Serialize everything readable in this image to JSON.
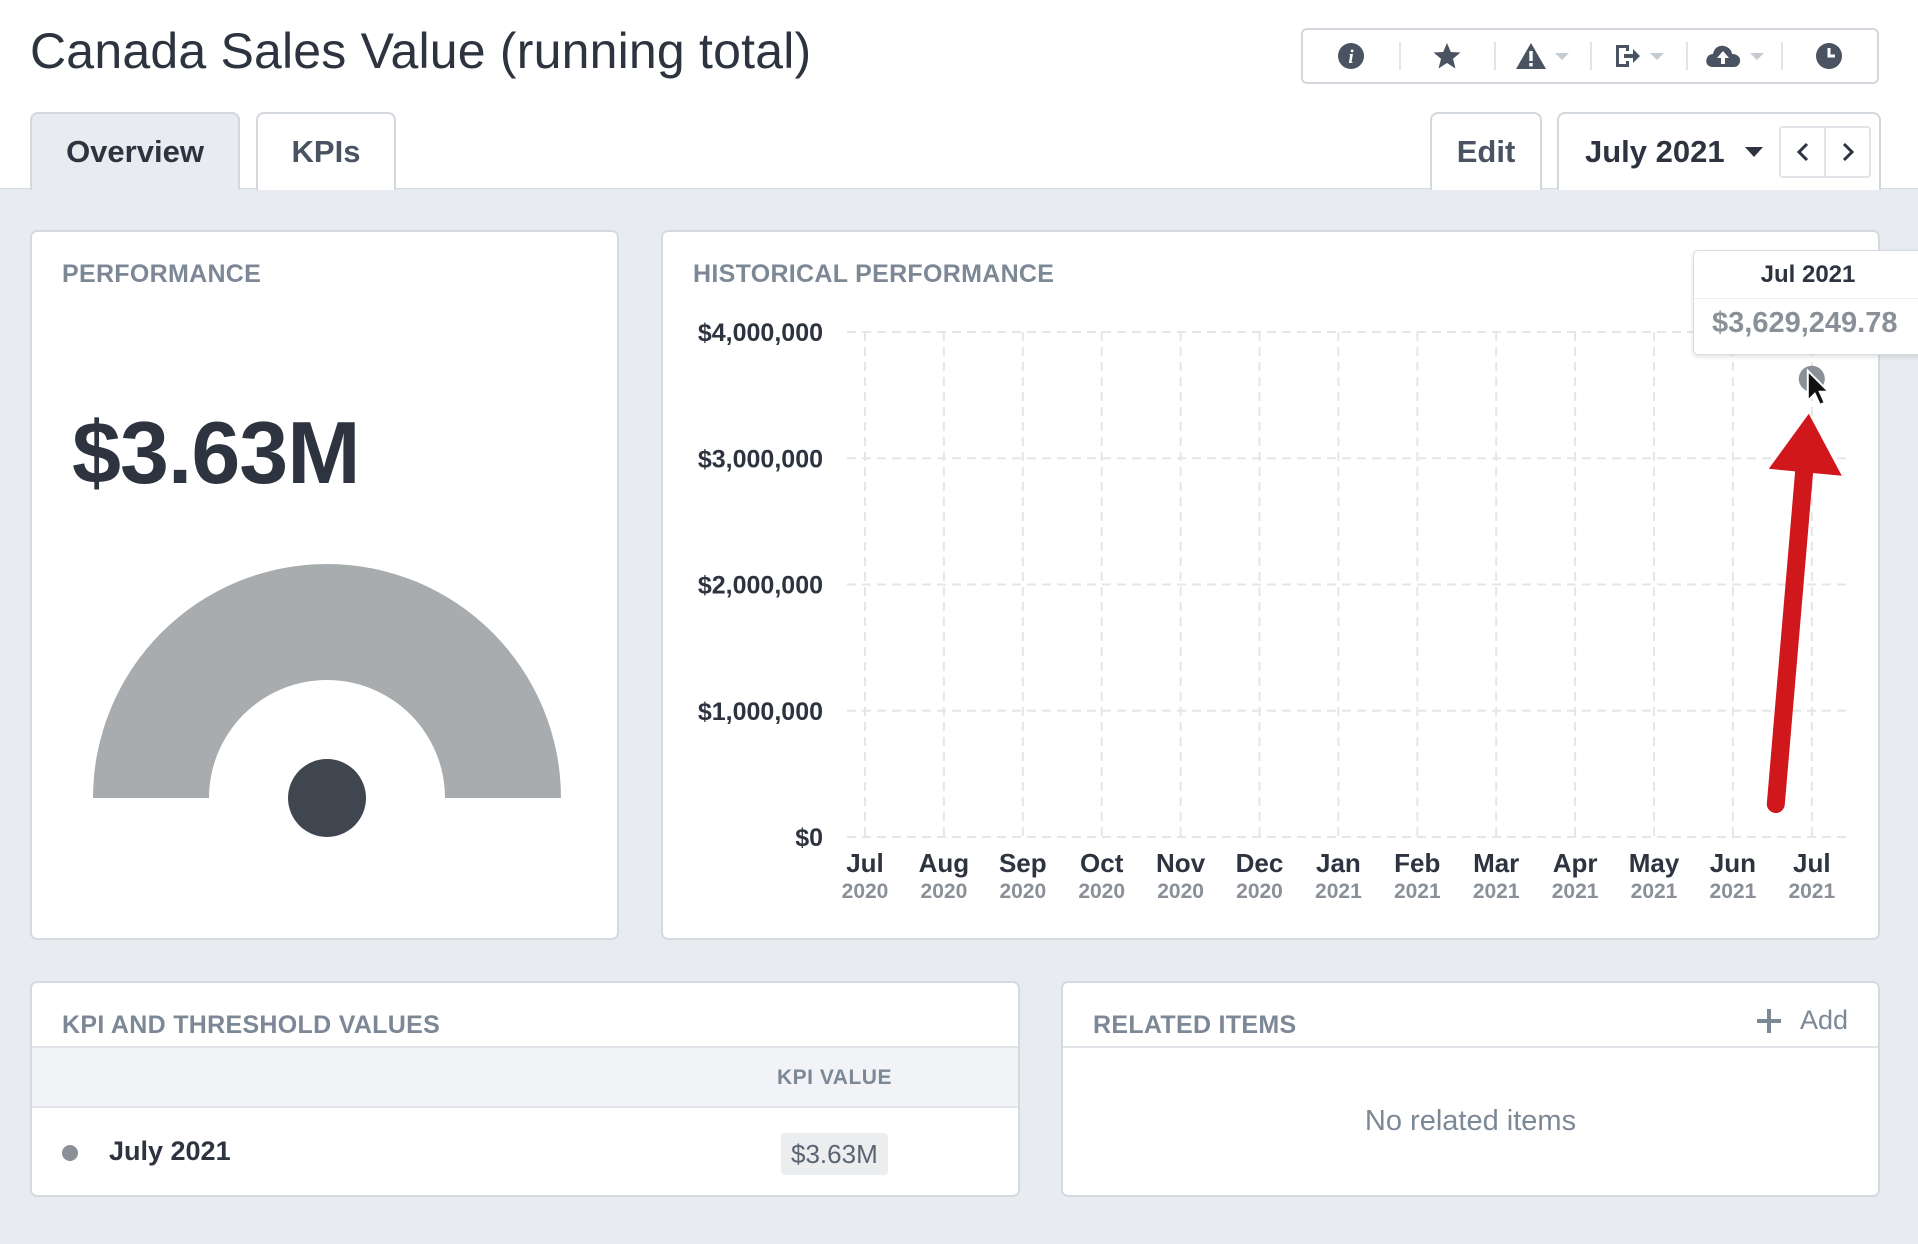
{
  "header": {
    "title": "Canada Sales Value (running total)",
    "toolbar": [
      {
        "icon": "info-icon"
      },
      {
        "icon": "star-icon"
      },
      {
        "icon": "warning-icon",
        "has_menu": true
      },
      {
        "icon": "export-icon",
        "has_menu": true
      },
      {
        "icon": "cloud-upload-icon",
        "has_menu": true
      },
      {
        "icon": "clock-icon"
      }
    ],
    "tabs": [
      {
        "label": "Overview",
        "active": true
      },
      {
        "label": "KPIs",
        "active": false
      }
    ],
    "edit_label": "Edit",
    "period": {
      "selected": "July 2021"
    }
  },
  "performance": {
    "title": "PERFORMANCE",
    "value": "$3.63M",
    "gauge_color": "#a8acae",
    "needle_color": "#3f4650"
  },
  "historical": {
    "title": "HISTORICAL PERFORMANCE",
    "tooltip": {
      "period": "Jul 2021",
      "value": "$3,629,249.78"
    }
  },
  "chart_data": {
    "type": "line",
    "title": "",
    "xlabel": "",
    "ylabel": "",
    "categories": [
      {
        "month": "Jul",
        "year": "2020"
      },
      {
        "month": "Aug",
        "year": "2020"
      },
      {
        "month": "Sep",
        "year": "2020"
      },
      {
        "month": "Oct",
        "year": "2020"
      },
      {
        "month": "Nov",
        "year": "2020"
      },
      {
        "month": "Dec",
        "year": "2020"
      },
      {
        "month": "Jan",
        "year": "2021"
      },
      {
        "month": "Feb",
        "year": "2021"
      },
      {
        "month": "Mar",
        "year": "2021"
      },
      {
        "month": "Apr",
        "year": "2021"
      },
      {
        "month": "May",
        "year": "2021"
      },
      {
        "month": "Jun",
        "year": "2021"
      },
      {
        "month": "Jul",
        "year": "2021"
      }
    ],
    "series": [
      {
        "values": [
          null,
          null,
          null,
          null,
          null,
          null,
          null,
          null,
          null,
          null,
          null,
          null,
          3629249.78
        ]
      }
    ],
    "yticks": [
      {
        "label": "$4,000,000",
        "value": 4000000
      },
      {
        "label": "$3,000,000",
        "value": 3000000
      },
      {
        "label": "$2,000,000",
        "value": 2000000
      },
      {
        "label": "$1,000,000",
        "value": 1000000
      },
      {
        "label": "$0",
        "value": 0
      }
    ],
    "ylim": [
      0,
      4000000
    ],
    "grid": true,
    "point_color": "#8a9097",
    "annotation": {
      "type": "arrow",
      "color": "#d0181c",
      "points_to": "Jul 2021"
    }
  },
  "kpi_table": {
    "title": "KPI AND THRESHOLD VALUES",
    "column": "KPI VALUE",
    "rows": [
      {
        "label": "July 2021",
        "value": "$3.63M"
      }
    ]
  },
  "related": {
    "title": "RELATED ITEMS",
    "add_label": "Add",
    "empty": "No related items"
  }
}
